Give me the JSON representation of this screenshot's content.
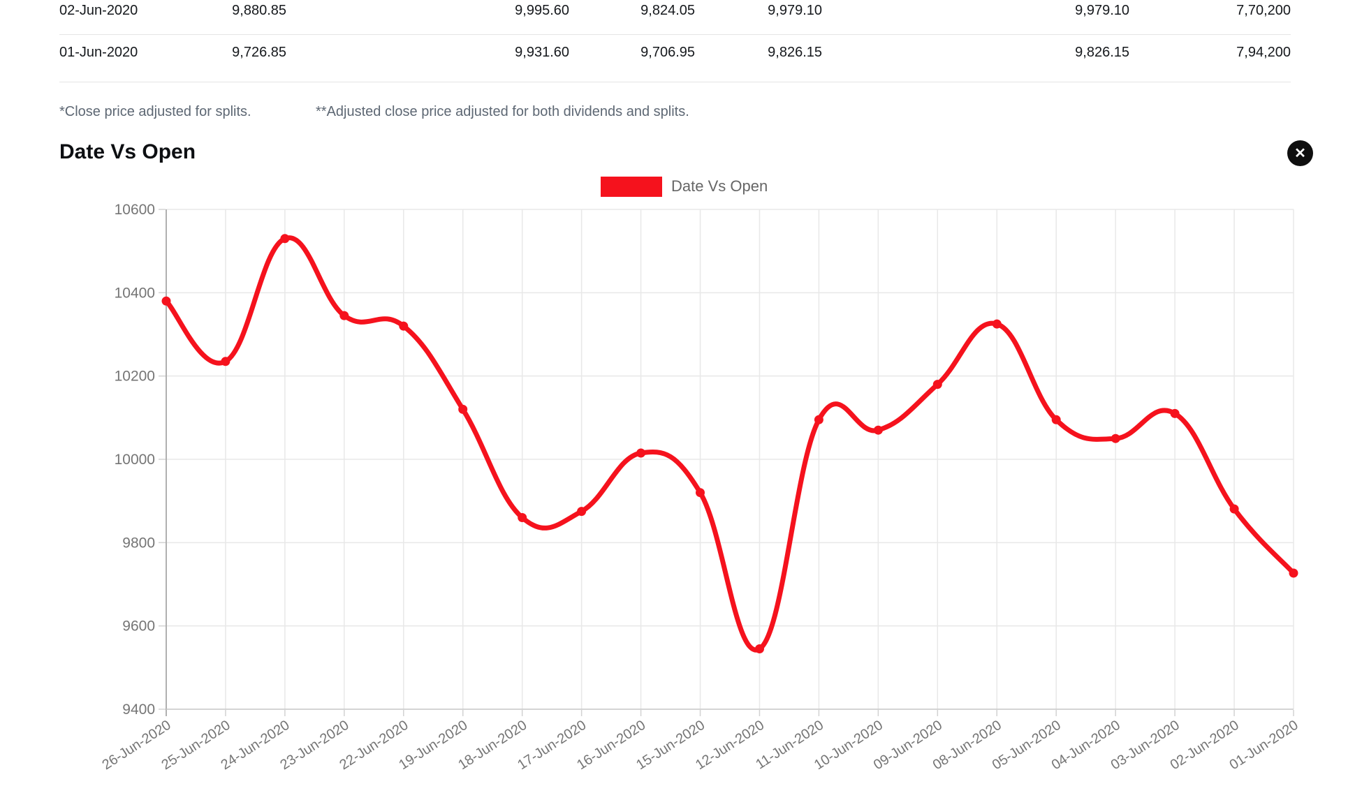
{
  "table": {
    "columns": [
      {
        "key": "date",
        "align": "left"
      },
      {
        "key": "open",
        "align": "right"
      },
      {
        "key": "high",
        "align": "right"
      },
      {
        "key": "low",
        "align": "right"
      },
      {
        "key": "close",
        "align": "right"
      },
      {
        "key": "adj_close",
        "align": "right"
      },
      {
        "key": "volume",
        "align": "right"
      }
    ],
    "rows": [
      {
        "date": "02-Jun-2020",
        "open": "9,880.85",
        "high": "9,995.60",
        "low": "9,824.05",
        "close": "9,979.10",
        "adj_close": "9,979.10",
        "volume": "7,70,200"
      },
      {
        "date": "01-Jun-2020",
        "open": "9,726.85",
        "high": "9,931.60",
        "low": "9,706.95",
        "close": "9,826.15",
        "adj_close": "9,826.15",
        "volume": "7,94,200"
      }
    ]
  },
  "footnotes": {
    "splits": "*Close price adjusted for splits.",
    "adjusted": "**Adjusted close price adjusted for both dividends and splits."
  },
  "chart": {
    "title": "Date Vs Open",
    "close_icon": "✕",
    "legend_label": "Date Vs Open"
  },
  "chart_data": {
    "type": "line",
    "title": "Date Vs Open",
    "legend_position": "top-center",
    "grid": true,
    "line_style": "smooth-spline-with-point-markers",
    "x": [
      "26-Jun-2020",
      "25-Jun-2020",
      "24-Jun-2020",
      "23-Jun-2020",
      "22-Jun-2020",
      "19-Jun-2020",
      "18-Jun-2020",
      "17-Jun-2020",
      "16-Jun-2020",
      "15-Jun-2020",
      "12-Jun-2020",
      "11-Jun-2020",
      "10-Jun-2020",
      "09-Jun-2020",
      "08-Jun-2020",
      "05-Jun-2020",
      "04-Jun-2020",
      "03-Jun-2020",
      "02-Jun-2020",
      "01-Jun-2020"
    ],
    "series": [
      {
        "name": "Date Vs Open",
        "values": [
          10380,
          10235,
          10530,
          10345,
          10320,
          10120,
          9860,
          9875,
          10015,
          9920,
          9545,
          10095,
          10070,
          10180,
          10325,
          10095,
          10050,
          10110,
          9880.85,
          9726.85
        ]
      }
    ],
    "xlabel": "",
    "ylabel": "",
    "ylim": [
      9400,
      10600
    ],
    "y_ticks": [
      9400,
      9600,
      9800,
      10000,
      10200,
      10400,
      10600
    ],
    "colors": {
      "line": "#f5121d",
      "marker": "#f5121d",
      "grid": "#e8e8e8",
      "axis_line": "#b0b0b0",
      "tick_mark": "#d2d2d2",
      "tick_label": "#757575"
    }
  }
}
